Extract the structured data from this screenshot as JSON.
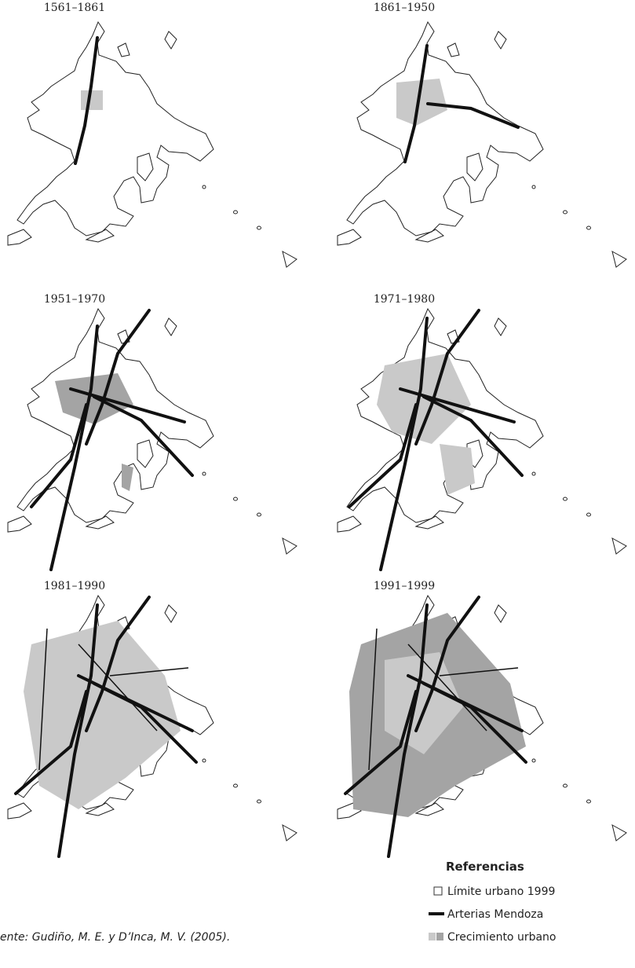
{
  "panels": [
    {
      "title": "1561–1861"
    },
    {
      "title": "1861–1950"
    },
    {
      "title": "1951–1970"
    },
    {
      "title": "1971–1980"
    },
    {
      "title": "1981–1990"
    },
    {
      "title": "1991–1999"
    }
  ],
  "legend": {
    "title": "Referencias",
    "items": [
      "Límite urbano 1999",
      "Arterias Mendoza",
      "Crecimiento urbano"
    ]
  },
  "source": "ente: Gudiño, M. E. y D’Inca, M. V. (2005)."
}
